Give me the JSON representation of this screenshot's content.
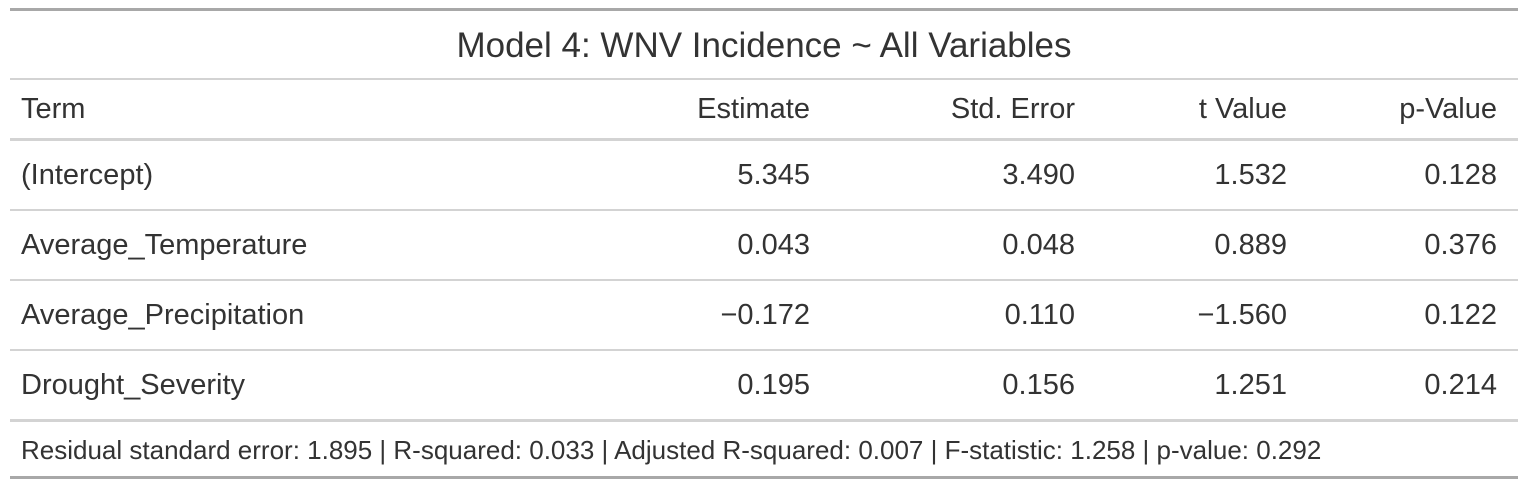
{
  "table": {
    "title": "Model 4: WNV Incidence ~ All Variables",
    "columns": [
      "Term",
      "Estimate",
      "Std. Error",
      "t Value",
      "p-Value"
    ],
    "rows": [
      {
        "term": "(Intercept)",
        "estimate": "5.345",
        "std_error": "3.490",
        "t_value": "1.532",
        "p_value": "0.128"
      },
      {
        "term": "Average_Temperature",
        "estimate": "0.043",
        "std_error": "0.048",
        "t_value": "0.889",
        "p_value": "0.376"
      },
      {
        "term": "Average_Precipitation",
        "estimate": "−0.172",
        "std_error": "0.110",
        "t_value": "−1.560",
        "p_value": "0.122"
      },
      {
        "term": "Drought_Severity",
        "estimate": "0.195",
        "std_error": "0.156",
        "t_value": "1.251",
        "p_value": "0.214"
      }
    ],
    "footnote": "Residual standard error: 1.895 | R-squared: 0.033 | Adjusted R-squared: 0.007 | F-statistic: 1.258 | p-value: 0.292"
  }
}
